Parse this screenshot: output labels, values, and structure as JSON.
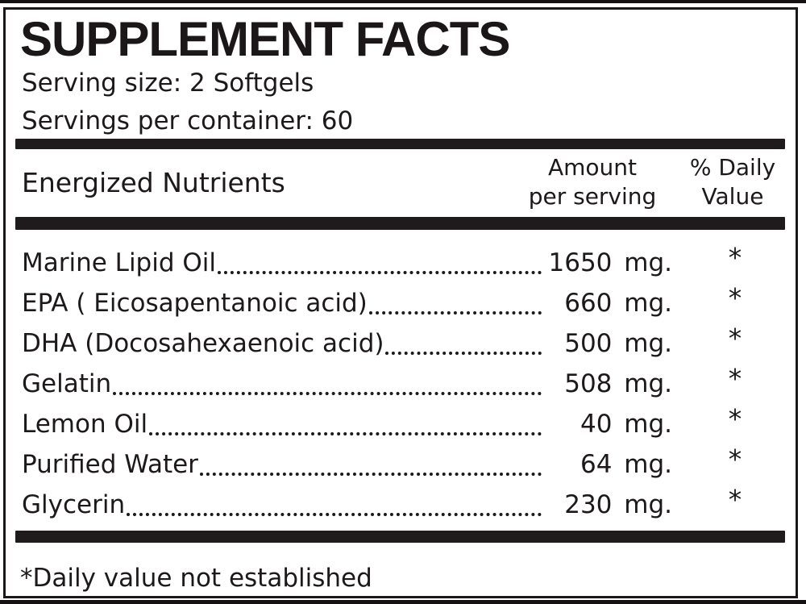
{
  "label": {
    "title": "SUPPLEMENT FACTS",
    "serving_size": "Serving size: 2 Softgels",
    "servings_per_container": "Servings per container: 60",
    "columns": {
      "nutrient_header": "Energized Nutrients",
      "amount_line1": "Amount",
      "amount_line2": "per serving",
      "daily_value_line1": "% Daily",
      "daily_value_line2": "Value"
    },
    "rows": [
      {
        "name": "Marine Lipid Oil",
        "amount": "1650 mg.",
        "daily_value": "*"
      },
      {
        "name": "EPA ( Eicosapentanoic acid)",
        "amount": "660 mg.",
        "daily_value": "*"
      },
      {
        "name": "DHA (Docosahexaenoic acid)",
        "amount": "500 mg.",
        "daily_value": "*"
      },
      {
        "name": "Gelatin",
        "amount": "508 mg.",
        "daily_value": "*"
      },
      {
        "name": "Lemon Oil",
        "amount": "40 mg.",
        "daily_value": "*"
      },
      {
        "name": "Purified Water",
        "amount": "64 mg.",
        "daily_value": "*"
      },
      {
        "name": "Glycerin",
        "amount": "230 mg.",
        "daily_value": "*"
      }
    ],
    "footnote": "*Daily value not established",
    "colors": {
      "text": "#1d191a",
      "separator_bar": "#1f1b1c",
      "background": "#ffffff"
    }
  }
}
